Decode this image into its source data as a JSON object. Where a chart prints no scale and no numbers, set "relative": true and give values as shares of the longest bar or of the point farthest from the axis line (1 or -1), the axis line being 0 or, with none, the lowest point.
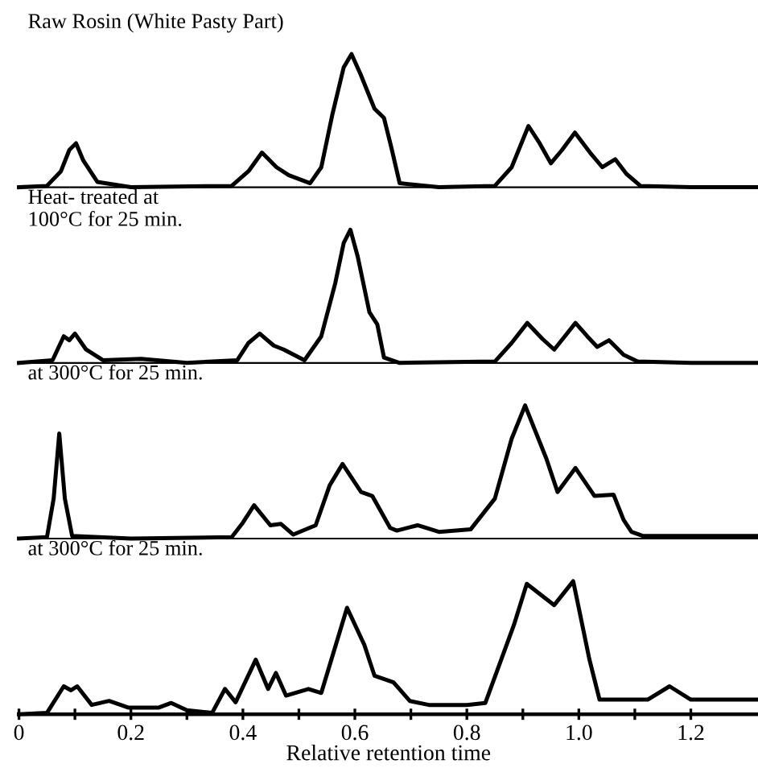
{
  "chart_data": [
    {
      "type": "line",
      "relative": true,
      "title": "Raw Rosin (White Pasty Part)",
      "tick_labels": false,
      "xlim": [
        0,
        1.32
      ],
      "series": [
        {
          "color": "#000000",
          "x": [
            0,
            0.05,
            0.075,
            0.09,
            0.102,
            0.115,
            0.14,
            0.2,
            0.38,
            0.41,
            0.434,
            0.46,
            0.482,
            0.52,
            0.54,
            0.56,
            0.58,
            0.594,
            0.61,
            0.635,
            0.652,
            0.665,
            0.68,
            0.75,
            0.85,
            0.88,
            0.91,
            0.93,
            0.95,
            0.97,
            0.993,
            1.02,
            1.042,
            1.065,
            1.085,
            1.11,
            1.2,
            1.32
          ],
          "values": [
            0,
            0.01,
            0.12,
            0.28,
            0.33,
            0.2,
            0.04,
            0,
            0.01,
            0.12,
            0.26,
            0.15,
            0.09,
            0.03,
            0.15,
            0.55,
            0.9,
            1,
            0.85,
            0.59,
            0.52,
            0.3,
            0.03,
            0,
            0.01,
            0.15,
            0.46,
            0.33,
            0.18,
            0.28,
            0.41,
            0.26,
            0.15,
            0.21,
            0.1,
            0.01,
            0,
            0
          ]
        }
      ]
    },
    {
      "type": "line",
      "relative": true,
      "title": "Heat- treated at\n100°C for 25 min.",
      "tick_labels": false,
      "xlim": [
        0,
        1.32
      ],
      "series": [
        {
          "color": "#000000",
          "x": [
            0,
            0.06,
            0.08,
            0.09,
            0.1,
            0.12,
            0.15,
            0.218,
            0.3,
            0.39,
            0.41,
            0.43,
            0.455,
            0.473,
            0.51,
            0.54,
            0.565,
            0.58,
            0.592,
            0.605,
            0.626,
            0.64,
            0.652,
            0.68,
            0.85,
            0.88,
            0.908,
            0.935,
            0.956,
            0.975,
            0.994,
            1.015,
            1.033,
            1.054,
            1.08,
            1.105,
            1.2,
            1.32
          ],
          "values": [
            0,
            0.02,
            0.2,
            0.17,
            0.22,
            0.1,
            0.02,
            0.03,
            0,
            0.02,
            0.15,
            0.22,
            0.13,
            0.1,
            0.02,
            0.2,
            0.6,
            0.9,
            1,
            0.8,
            0.38,
            0.29,
            0.04,
            0,
            0.01,
            0.15,
            0.3,
            0.18,
            0.1,
            0.2,
            0.3,
            0.2,
            0.12,
            0.17,
            0.06,
            0.01,
            0,
            0
          ]
        }
      ]
    },
    {
      "type": "line",
      "relative": true,
      "title": "at 300°C for 25 min.",
      "tick_labels": false,
      "xlim": [
        0,
        1.32
      ],
      "series": [
        {
          "color": "#000000",
          "x": [
            0,
            0.05,
            0.062,
            0.072,
            0.082,
            0.095,
            0.2,
            0.38,
            0.4,
            0.42,
            0.449,
            0.468,
            0.49,
            0.53,
            0.555,
            0.578,
            0.611,
            0.631,
            0.663,
            0.675,
            0.712,
            0.75,
            0.807,
            0.85,
            0.88,
            0.904,
            0.942,
            0.962,
            0.994,
            1.028,
            1.062,
            1.08,
            1.094,
            1.114,
            1.2,
            1.32
          ],
          "values": [
            0,
            0.01,
            0.3,
            0.79,
            0.3,
            0.02,
            0,
            0.01,
            0.12,
            0.25,
            0.1,
            0.11,
            0.03,
            0.1,
            0.4,
            0.56,
            0.35,
            0.32,
            0.08,
            0.06,
            0.1,
            0.05,
            0.07,
            0.3,
            0.75,
            1,
            0.6,
            0.35,
            0.53,
            0.32,
            0.33,
            0.14,
            0.05,
            0.02,
            0.02,
            0.02
          ]
        }
      ]
    },
    {
      "type": "line",
      "relative": true,
      "title": "at 300°C for 25 min.",
      "tick_labels": "x",
      "xlim": [
        0,
        1.32
      ],
      "xlabel": "Relative retention time",
      "xticks": [
        0,
        {
          "value": 0.1,
          "label": null
        },
        0.2,
        {
          "value": 0.3,
          "label": null
        },
        0.4,
        {
          "value": 0.5,
          "label": null
        },
        0.6,
        {
          "value": 0.7,
          "label": null
        },
        0.8,
        {
          "value": 0.9,
          "label": null
        },
        {
          "value": 1.0,
          "label": "1.0"
        },
        {
          "value": 1.1,
          "label": null
        },
        1.2
      ],
      "series": [
        {
          "color": "#000000",
          "x": [
            0,
            0.05,
            0.08,
            0.093,
            0.104,
            0.13,
            0.161,
            0.195,
            0.25,
            0.272,
            0.3,
            0.345,
            0.368,
            0.387,
            0.423,
            0.445,
            0.459,
            0.477,
            0.517,
            0.54,
            0.586,
            0.617,
            0.635,
            0.669,
            0.698,
            0.732,
            0.8,
            0.833,
            0.884,
            0.907,
            0.956,
            0.99,
            1.019,
            1.037,
            1.1,
            1.123,
            1.162,
            1.2,
            1.32
          ],
          "values": [
            0,
            0.01,
            0.21,
            0.18,
            0.21,
            0.07,
            0.1,
            0.05,
            0.05,
            0.085,
            0.03,
            0.01,
            0.19,
            0.09,
            0.41,
            0.19,
            0.31,
            0.14,
            0.19,
            0.16,
            0.8,
            0.52,
            0.29,
            0.24,
            0.1,
            0.07,
            0.07,
            0.085,
            0.67,
            0.98,
            0.82,
            1,
            0.41,
            0.11,
            0.11,
            0.11,
            0.21,
            0.11,
            0.11
          ]
        }
      ]
    }
  ]
}
